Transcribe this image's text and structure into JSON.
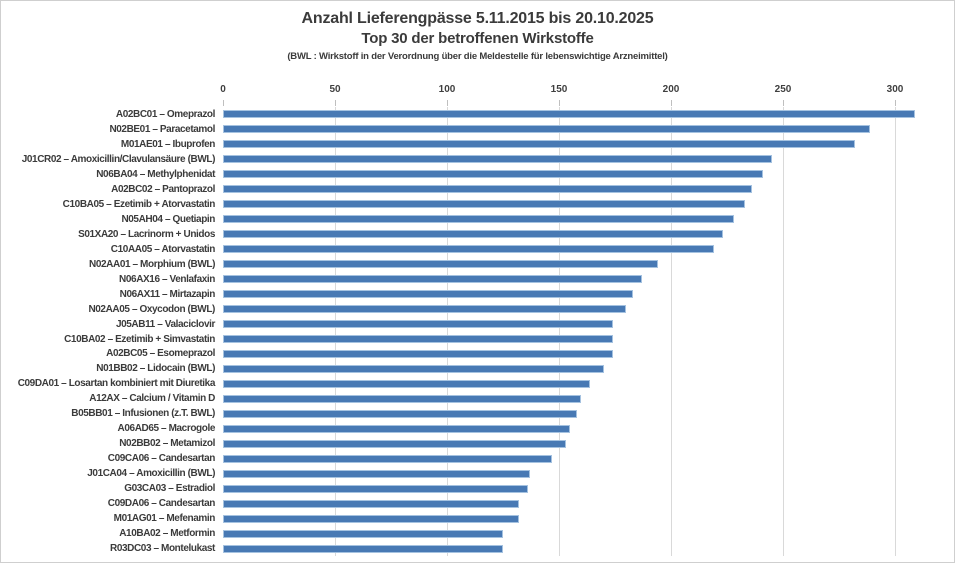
{
  "title": {
    "line1": "Anzahl Lieferengpässe 5.11.2015 bis 20.10.2025",
    "line2": "Top 30 der betroffenen Wirkstoffe",
    "line3": "(BWL : Wirkstoff in der Verordnung über die Meldestelle für lebenswichtige Arzneimittel)"
  },
  "chart_data": {
    "type": "bar",
    "orientation": "horizontal",
    "title": "Anzahl Lieferengpässe 5.11.2015 bis 20.10.2025",
    "subtitle": "Top 30 der betroffenen Wirkstoffe",
    "note": "(BWL : Wirkstoff in der Verordnung über die Meldestelle für lebenswichtige Arzneimittel)",
    "xlabel": "",
    "ylabel": "",
    "xlim": [
      0,
      323
    ],
    "ticks": [
      0,
      50,
      100,
      150,
      200,
      250,
      300
    ],
    "grid": true,
    "legend": false,
    "categories": [
      "A02BC01 – Omeprazol",
      "N02BE01 – Paracetamol",
      "M01AE01 – Ibuprofen",
      "J01CR02 – Amoxicillin/Clavulansäure (BWL)",
      "N06BA04 – Methylphenidat",
      "A02BC02 – Pantoprazol",
      "C10BA05 – Ezetimib + Atorvastatin",
      "N05AH04 – Quetiapin",
      "S01XA20 – Lacrinorm + Unidos",
      "C10AA05 – Atorvastatin",
      "N02AA01 – Morphium (BWL)",
      "N06AX16 – Venlafaxin",
      "N06AX11 – Mirtazapin",
      "N02AA05 – Oxycodon (BWL)",
      "J05AB11 – Valaciclovir",
      "C10BA02 – Ezetimib + Simvastatin",
      "A02BC05 – Esomeprazol",
      "N01BB02 – Lidocain (BWL)",
      "C09DA01 – Losartan kombiniert mit Diuretika",
      "A12AX – Calcium / Vitamin D",
      "B05BB01 – Infusionen (z.T. BWL)",
      "A06AD65 – Macrogole",
      "N02BB02 – Metamizol",
      "C09CA06 – Candesartan",
      "J01CA04 – Amoxicillin (BWL)",
      "G03CA03 – Estradiol",
      "C09DA06 – Candesartan",
      "M01AG01 – Mefenamin",
      "A10BA02 – Metformin",
      "R03DC03 – Montelukast"
    ],
    "values": [
      309,
      289,
      282,
      245,
      241,
      236,
      233,
      228,
      223,
      219,
      194,
      187,
      183,
      180,
      174,
      174,
      174,
      170,
      164,
      160,
      158,
      155,
      153,
      147,
      137,
      136,
      132,
      132,
      125,
      125
    ],
    "colors": {
      "bar": "#4879B4",
      "bar_edge": "#A5C2E0",
      "grid": "#D9D9D9",
      "tick": "#BFBFBF",
      "text": "#3F3F3F"
    }
  }
}
